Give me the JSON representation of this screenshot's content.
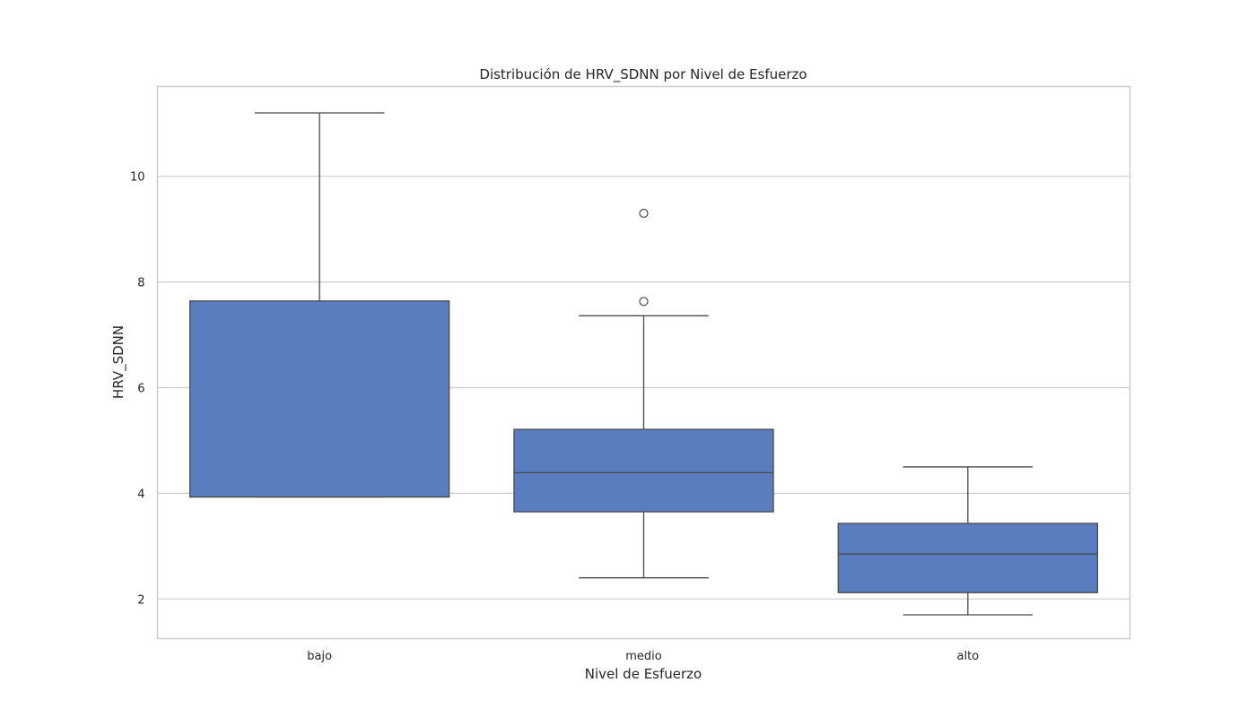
{
  "chart_data": {
    "type": "boxplot",
    "title": "Distribución de HRV_SDNN por Nivel de Esfuerzo",
    "xlabel": "Nivel de Esfuerzo",
    "ylabel": "HRV_SDNN",
    "categories": [
      "bajo",
      "medio",
      "alto"
    ],
    "ylim": [
      1.25,
      11.7
    ],
    "yticks": [
      2,
      4,
      6,
      8,
      10
    ],
    "grid": "horizontal",
    "box_color": "#5a7dc0",
    "line_color": "#4a4a4a",
    "boxes": [
      {
        "category": "bajo",
        "whisker_low": 3.93,
        "q1": 3.93,
        "median": 3.93,
        "q3": 7.64,
        "whisker_high": 11.2,
        "outliers": []
      },
      {
        "category": "medio",
        "whisker_low": 2.4,
        "q1": 3.65,
        "median": 4.39,
        "q3": 5.21,
        "whisker_high": 7.36,
        "outliers": [
          9.3,
          7.63
        ]
      },
      {
        "category": "alto",
        "whisker_low": 1.7,
        "q1": 2.12,
        "median": 2.85,
        "q3": 3.43,
        "whisker_high": 4.5,
        "outliers": []
      }
    ]
  }
}
